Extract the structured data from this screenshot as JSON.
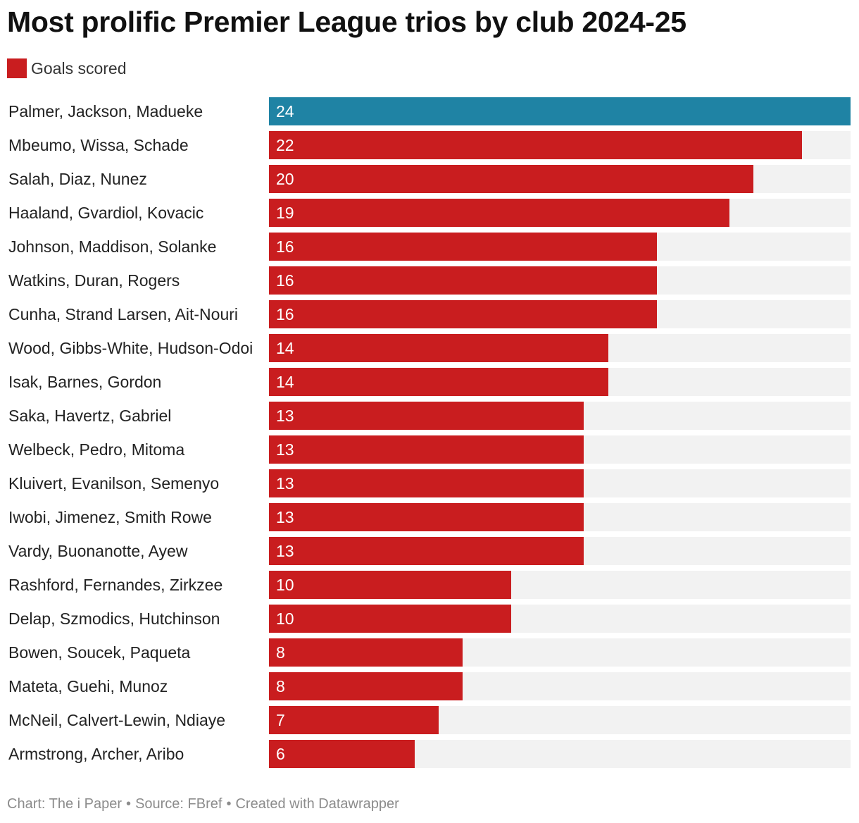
{
  "title": "Most prolific Premier League trios by club 2024-25",
  "legend": {
    "label": "Goals scored",
    "color": "#c91d1f"
  },
  "colors": {
    "default_bar": "#c91d1f",
    "highlight_bar": "#1f83a4",
    "track": "#f2f2f2"
  },
  "footer": {
    "chart_credit": "Chart: The i Paper",
    "source": "Source: FBref",
    "tool": "Created with Datawrapper",
    "separator": "•"
  },
  "chart_data": {
    "type": "bar",
    "orientation": "horizontal",
    "title": "Most prolific Premier League trios by club 2024-25",
    "xlim": [
      0,
      24
    ],
    "grid": false,
    "legend_position": "top-left",
    "categories": [
      "Palmer, Jackson, Madueke",
      "Mbeumo, Wissa, Schade",
      "Salah, Diaz, Nunez",
      "Haaland, Gvardiol, Kovacic",
      "Johnson, Maddison, Solanke",
      "Watkins, Duran, Rogers",
      "Cunha, Strand Larsen, Ait-Nouri",
      "Wood, Gibbs-White, Hudson-Odoi",
      "Isak, Barnes, Gordon",
      "Saka, Havertz, Gabriel",
      "Welbeck, Pedro, Mitoma",
      "Kluivert, Evanilson, Semenyo",
      "Iwobi, Jimenez, Smith Rowe",
      "Vardy, Buonanotte, Ayew",
      "Rashford, Fernandes, Zirkzee",
      "Delap, Szmodics, Hutchinson",
      "Bowen, Soucek, Paqueta",
      "Mateta, Guehi, Munoz",
      "McNeil, Calvert-Lewin, Ndiaye",
      "Armstrong, Archer, Aribo"
    ],
    "series": [
      {
        "name": "Goals scored",
        "values": [
          24,
          22,
          20,
          19,
          16,
          16,
          16,
          14,
          14,
          13,
          13,
          13,
          13,
          13,
          10,
          10,
          8,
          8,
          7,
          6
        ]
      }
    ],
    "highlighted_category": "Palmer, Jackson, Madueke"
  }
}
